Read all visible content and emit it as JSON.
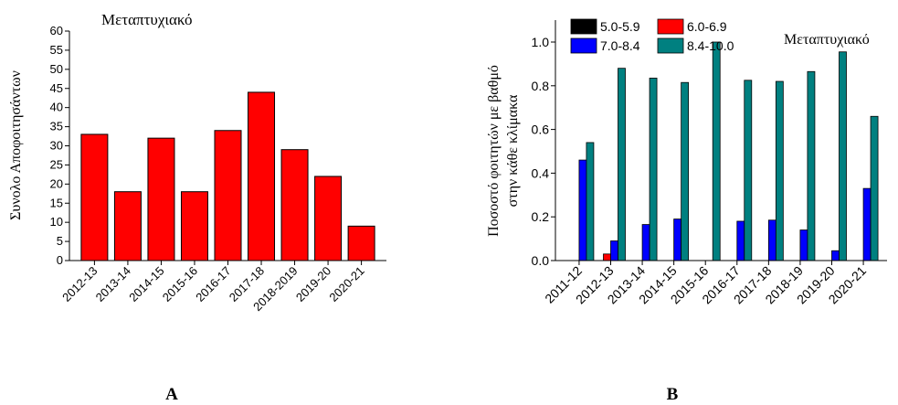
{
  "panels": [
    {
      "label": "A"
    },
    {
      "label": "B"
    }
  ],
  "colors": {
    "red": "#ff0000",
    "black": "#000000",
    "blue": "#0000ff",
    "teal": "#008080"
  },
  "chart_data": [
    {
      "type": "bar",
      "title": "Μεταπτυχιακό",
      "xlabel": "",
      "ylabel": "Συνολο Αποφοιτησάντων",
      "ylim": [
        0,
        60
      ],
      "yticks": [
        "0",
        "5",
        "10",
        "15",
        "20",
        "25",
        "30",
        "35",
        "40",
        "45",
        "50",
        "55",
        "60"
      ],
      "categories": [
        "2012-13",
        "2013-14",
        "2014-15",
        "2015-16",
        "2016-17",
        "2017-18",
        "2018-2019",
        "2019-20",
        "2020-21"
      ],
      "values": [
        33,
        18,
        32,
        18,
        34,
        44,
        29,
        22,
        9
      ],
      "grid": false,
      "legend": "none"
    },
    {
      "type": "bar",
      "title": "Μεταπτυχιακό",
      "xlabel": "",
      "ylabel_lines": [
        "Ποσοστό φοιτητών με βαθμό",
        "στην κάθε κλίμακα"
      ],
      "ylim": [
        0,
        1.0
      ],
      "yticks": [
        "0.0",
        "0.2",
        "0.4",
        "0.6",
        "0.8",
        "1.0"
      ],
      "categories": [
        "2011-12",
        "2012-13",
        "2013-14",
        "2014-15",
        "2015-16",
        "2016-17",
        "2017-18",
        "2018-19",
        "2019-20",
        "2020-21"
      ],
      "series": [
        {
          "name": "5.0-5.9",
          "color": "#000000",
          "values": [
            0,
            0,
            0,
            0,
            0,
            0,
            0,
            0,
            0,
            0
          ]
        },
        {
          "name": "6.0-6.9",
          "color": "#ff0000",
          "values": [
            0,
            0.03,
            0,
            0,
            0,
            0,
            0,
            0,
            0,
            0
          ]
        },
        {
          "name": "7.0-8.4",
          "color": "#0000ff",
          "values": [
            0.46,
            0.09,
            0.165,
            0.19,
            0,
            0.18,
            0.185,
            0.14,
            0.045,
            0.33
          ]
        },
        {
          "name": "8.4-10.0",
          "color": "#008080",
          "values": [
            0.54,
            0.88,
            0.835,
            0.815,
            1.0,
            0.825,
            0.82,
            0.865,
            0.955,
            0.66
          ]
        }
      ],
      "grid": false,
      "legend": "top-left"
    }
  ]
}
